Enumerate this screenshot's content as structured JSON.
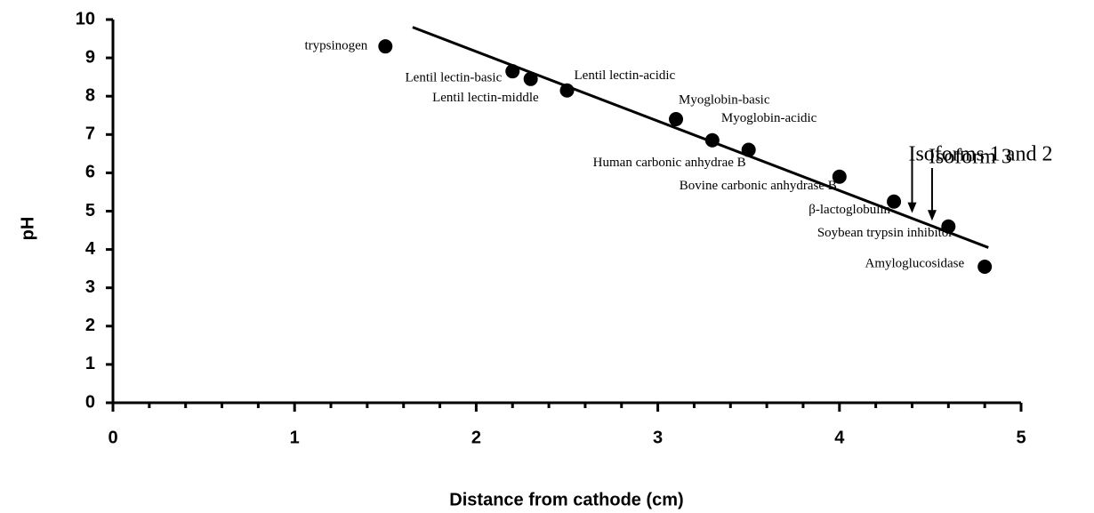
{
  "chart_data": {
    "type": "scatter",
    "x_label": "Distance from cathode (cm)",
    "y_label": "pH",
    "xlim": [
      0,
      5
    ],
    "ylim": [
      0,
      10
    ],
    "xticks": [
      0,
      1,
      2,
      3,
      4,
      5
    ],
    "xminorticks": [
      0.2,
      0.4,
      0.6,
      0.8,
      1.2,
      1.4,
      1.6,
      1.8,
      2.2,
      2.4,
      2.6,
      2.8,
      3.2,
      3.4,
      3.6,
      3.8,
      4.2,
      4.4,
      4.6,
      4.8
    ],
    "yticks": [
      0,
      1,
      2,
      3,
      4,
      5,
      6,
      7,
      8,
      9,
      10
    ],
    "color": "#000000",
    "points": [
      {
        "label": "trypsinogen",
        "x": 1.5,
        "y": 9.3
      },
      {
        "label": "Lentil lectin-basic",
        "x": 2.2,
        "y": 8.65
      },
      {
        "label": "Lentil lectin-middle",
        "x": 2.3,
        "y": 8.45
      },
      {
        "label": "Lentil lectin-acidic",
        "x": 2.5,
        "y": 8.15
      },
      {
        "label": "Myoglobin-basic",
        "x": 3.1,
        "y": 7.4
      },
      {
        "label": "Myoglobin-acidic",
        "x": 3.3,
        "y": 6.85
      },
      {
        "label": "Human carbonic anhydrae B",
        "x": 3.5,
        "y": 6.6
      },
      {
        "label": "Bovine carbonic anhydrase B",
        "x": 4.0,
        "y": 5.9
      },
      {
        "label": "β-lactoglobulin",
        "x": 4.3,
        "y": 5.25
      },
      {
        "label": "Soybean trypsin inhibitor",
        "x": 4.6,
        "y": 4.6
      },
      {
        "label": "Amyloglucosidase",
        "x": 4.8,
        "y": 3.55
      }
    ],
    "fit_line": {
      "x": [
        1.65,
        4.82
      ],
      "y": [
        9.8,
        4.05
      ]
    },
    "annotations": [
      {
        "text": "Isoforms 1 and 2",
        "x": 4.4
      },
      {
        "text": "Isoform 3",
        "x": 4.51
      }
    ]
  }
}
